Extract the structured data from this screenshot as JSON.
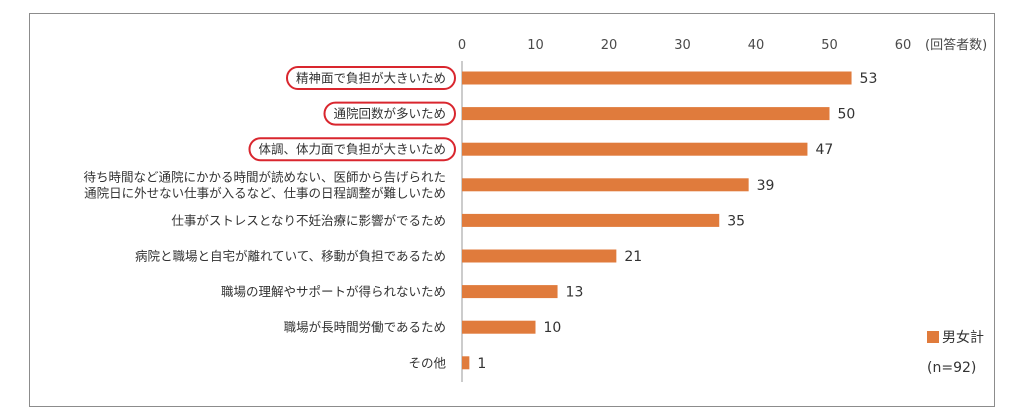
{
  "chart_data": {
    "type": "bar",
    "orientation": "horizontal",
    "unit_label": "(回答者数)",
    "xlim": [
      0,
      60
    ],
    "ticks": [
      0,
      10,
      20,
      30,
      40,
      50,
      60
    ],
    "categories": [
      [
        "精神面で負担が大きいため"
      ],
      [
        "通院回数が多いため"
      ],
      [
        "体調、体力面で負担が大きいため"
      ],
      [
        "待ち時間など通院にかかる時間が読めない、医師から告げられた",
        "通院日に外せない仕事が入るなど、仕事の日程調整が難しいため"
      ],
      [
        "仕事がストレスとなり不妊治療に影響がでるため"
      ],
      [
        "病院と職場と自宅が離れていて、移動が負担であるため"
      ],
      [
        "職場の理解やサポートが得られないため"
      ],
      [
        "職場が長時間労働であるため"
      ],
      [
        "その他"
      ]
    ],
    "highlighted": [
      true,
      true,
      true,
      false,
      false,
      false,
      false,
      false,
      false
    ],
    "series": [
      {
        "name": "男女計",
        "values": [
          53,
          50,
          47,
          39,
          35,
          21,
          13,
          10,
          1
        ]
      }
    ],
    "legend": {
      "position": "bottom-right",
      "note": "(n=92)"
    },
    "bar_color": "#e07b3c",
    "highlight_color": "#d9262e",
    "grid": false
  }
}
